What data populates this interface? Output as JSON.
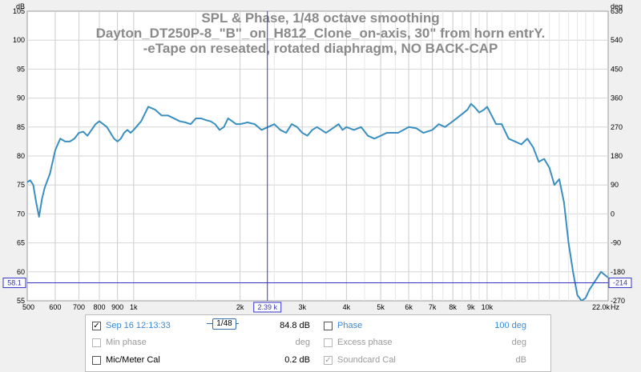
{
  "chart_data": {
    "type": "line",
    "title_lines": [
      "SPL & Phase, 1/48 octave smoothing",
      "Dayton_DT250P-8_\"B\"_on_H812_Clone_on-axis,  30\" from horn entrY.",
      "-eTape on reseated, rotated diaphragm, NO BACK-CAP"
    ],
    "xscale": "log",
    "xlim": [
      500,
      22000
    ],
    "ylim": [
      55,
      105
    ],
    "ylim_right": [
      -270,
      630
    ],
    "xticks": [
      {
        "v": 500,
        "label": "500"
      },
      {
        "v": 600,
        "label": "600"
      },
      {
        "v": 700,
        "label": "700"
      },
      {
        "v": 800,
        "label": "800"
      },
      {
        "v": 900,
        "label": "900"
      },
      {
        "v": 1000,
        "label": "1k"
      },
      {
        "v": 2000,
        "label": "2k"
      },
      {
        "v": 3000,
        "label": "3k"
      },
      {
        "v": 4000,
        "label": "4k"
      },
      {
        "v": 5000,
        "label": "5k"
      },
      {
        "v": 6000,
        "label": "6k"
      },
      {
        "v": 7000,
        "label": "7k"
      },
      {
        "v": 8000,
        "label": "8k"
      },
      {
        "v": 9000,
        "label": "9k"
      },
      {
        "v": 10000,
        "label": "10k"
      },
      {
        "v": 22000,
        "label": "22.0k"
      }
    ],
    "x_unit": "Hz",
    "yticks_left": [
      "105",
      "100",
      "95",
      "90",
      "85",
      "80",
      "75",
      "70",
      "65",
      "60",
      "55"
    ],
    "y_unit_left": "dB",
    "yticks_right": [
      "630",
      "540",
      "450",
      "360",
      "270",
      "180",
      "90",
      "0",
      "-90",
      "-180",
      "-270"
    ],
    "y_unit_right": "deg",
    "cursor": {
      "x": 2390,
      "x_label": "2.39 k",
      "y": 58.1,
      "y_label": "58.1",
      "y_right_label": "-214"
    },
    "grid": true,
    "series": [
      {
        "color": "#3a8fc0",
        "x": [
          500,
          510,
          520,
          530,
          540,
          550,
          560,
          580,
          600,
          620,
          640,
          660,
          680,
          700,
          720,
          740,
          760,
          780,
          800,
          820,
          840,
          860,
          880,
          900,
          920,
          940,
          960,
          980,
          1000,
          1050,
          1100,
          1150,
          1200,
          1250,
          1300,
          1350,
          1400,
          1450,
          1500,
          1550,
          1600,
          1650,
          1700,
          1750,
          1800,
          1850,
          1900,
          1950,
          2000,
          2100,
          2200,
          2300,
          2400,
          2500,
          2600,
          2700,
          2800,
          2900,
          3000,
          3100,
          3200,
          3300,
          3400,
          3500,
          3600,
          3700,
          3800,
          3900,
          4000,
          4200,
          4400,
          4600,
          4800,
          5000,
          5200,
          5400,
          5600,
          5800,
          6000,
          6300,
          6600,
          7000,
          7300,
          7600,
          8000,
          8400,
          8800,
          9000,
          9200,
          9500,
          9800,
          10000,
          10300,
          10600,
          11000,
          11500,
          12000,
          12500,
          13000,
          13500,
          14000,
          14500,
          15000,
          15500,
          16000,
          16500,
          17000,
          17500,
          18000,
          18500,
          19000,
          19500,
          20000,
          20500,
          21000,
          21500,
          22000
        ],
        "values": [
          75.5,
          75.8,
          75.0,
          72.0,
          69.5,
          72.5,
          74.5,
          77.0,
          81.0,
          83.0,
          82.5,
          82.5,
          83.0,
          84.0,
          84.2,
          83.5,
          84.5,
          85.5,
          86.0,
          85.5,
          85.0,
          84.0,
          83.0,
          82.5,
          83.0,
          84.0,
          84.5,
          84.0,
          84.5,
          86.0,
          88.5,
          88.0,
          87.0,
          87.0,
          86.5,
          86.0,
          85.8,
          85.5,
          86.5,
          86.5,
          86.2,
          86.0,
          85.5,
          84.5,
          85.0,
          86.5,
          86.0,
          85.5,
          85.5,
          85.8,
          85.5,
          84.5,
          85.0,
          85.5,
          84.5,
          84.0,
          85.5,
          85.0,
          84.0,
          83.5,
          84.5,
          85.0,
          84.5,
          84.0,
          84.5,
          85.0,
          85.5,
          84.5,
          85.0,
          84.5,
          85.0,
          83.5,
          83.0,
          83.5,
          84.0,
          84.0,
          84.0,
          84.5,
          85.0,
          84.8,
          84.0,
          84.5,
          85.5,
          85.0,
          86.0,
          87.0,
          88.0,
          89.0,
          88.5,
          87.5,
          88.0,
          88.5,
          87.0,
          85.5,
          85.5,
          83.0,
          82.5,
          82.0,
          83.0,
          81.5,
          79.0,
          79.5,
          78.0,
          75.0,
          76.0,
          72.0,
          65.0,
          60.0,
          56.0,
          55.0,
          55.5,
          57.0,
          58.0,
          59.0,
          60.0,
          59.5,
          59.0
        ]
      }
    ]
  },
  "legend": {
    "rows": [
      {
        "checked": true,
        "disabled": false,
        "label": "Sep 16 12:13:33",
        "value": "84.8 dB"
      },
      {
        "checked": false,
        "disabled": true,
        "label": "Min phase",
        "value": "deg"
      },
      {
        "checked": false,
        "disabled": false,
        "label": "Mic/Meter Cal",
        "value": "0.2 dB"
      }
    ],
    "rows_right": [
      {
        "checked": false,
        "disabled": false,
        "label": "Phase",
        "value": "100 deg"
      },
      {
        "checked": false,
        "disabled": true,
        "label": "Excess phase",
        "value": "deg"
      },
      {
        "checked": true,
        "disabled": true,
        "label": "Soundcard Cal",
        "value": "dB"
      }
    ],
    "smoothing_badge": "1/48",
    "check_glyph": "✓"
  }
}
